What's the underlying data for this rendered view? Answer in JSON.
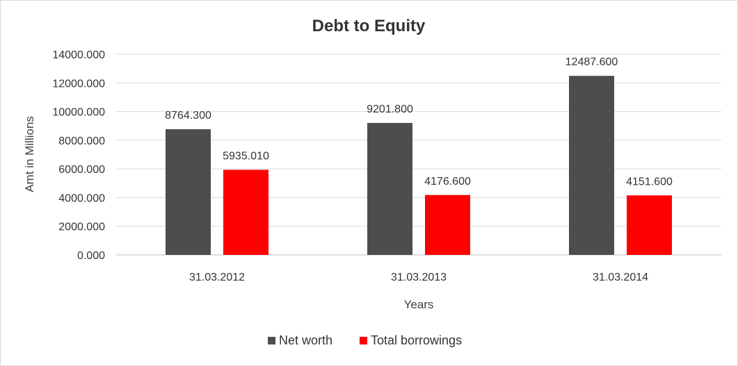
{
  "chart_data": {
    "type": "bar",
    "title": "Debt to Equity",
    "xlabel": "Years",
    "ylabel": "Amt in Millions",
    "categories": [
      "31.03.2012",
      "31.03.2013",
      "31.03.2014"
    ],
    "series": [
      {
        "name": "Net worth",
        "color": "#4d4d4d",
        "values": [
          8764.3,
          9201.8,
          12487.6
        ],
        "labels": [
          "8764.300",
          "9201.800",
          "12487.600"
        ]
      },
      {
        "name": "Total borrowings",
        "color": "#ff0000",
        "values": [
          5935.01,
          4176.6,
          4151.6
        ],
        "labels": [
          "5935.010",
          "4176.600",
          "4151.600"
        ]
      }
    ],
    "ylim": [
      0,
      14000
    ],
    "yticks": [
      "0.000",
      "2000.000",
      "4000.000",
      "6000.000",
      "8000.000",
      "10000.000",
      "12000.000",
      "14000.000"
    ],
    "grid": true,
    "legend_position": "bottom"
  }
}
